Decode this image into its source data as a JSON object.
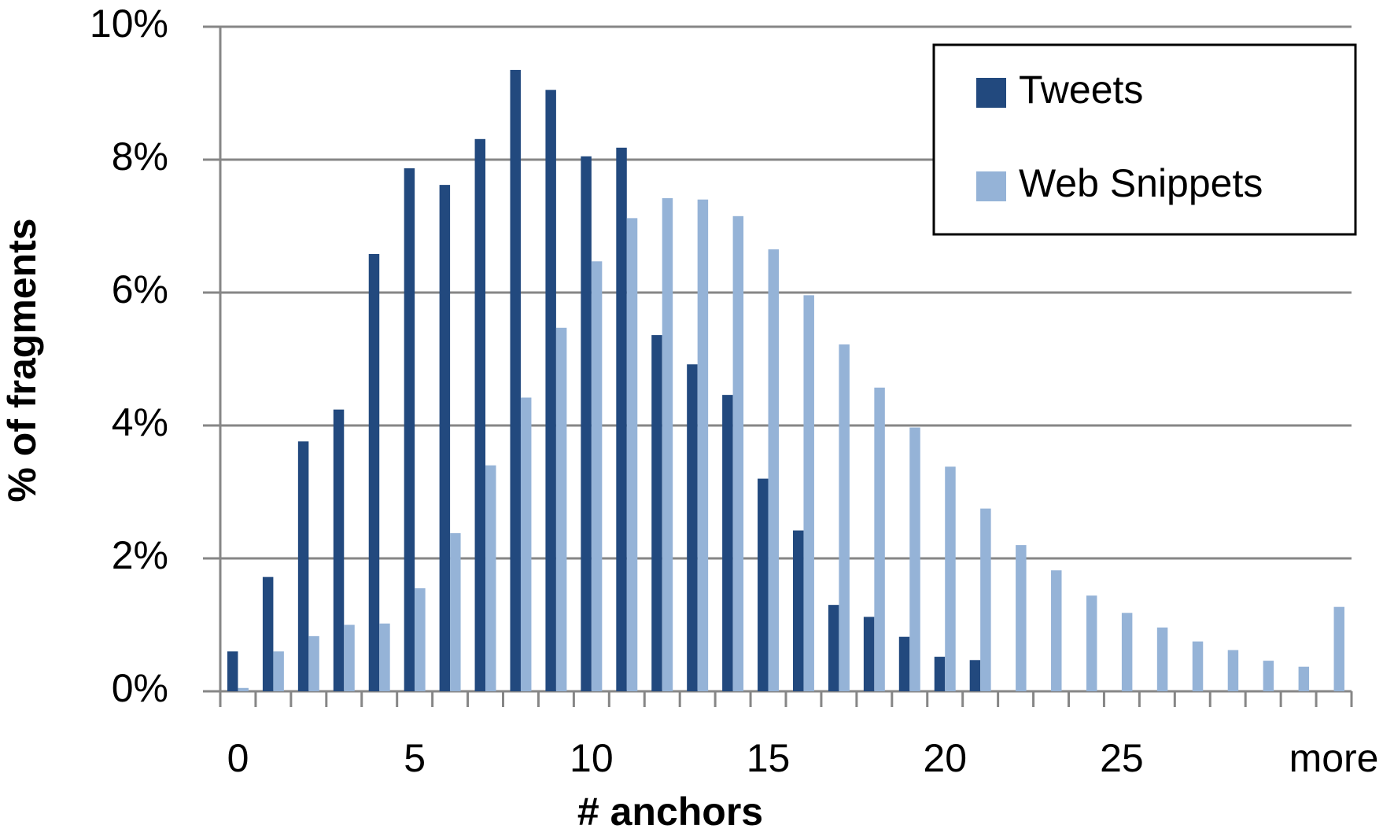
{
  "chart_data": {
    "type": "bar",
    "x_label": "# anchors",
    "y_label": "% of fragments",
    "categories": [
      "0",
      null,
      null,
      null,
      null,
      "5",
      null,
      null,
      null,
      null,
      "10",
      null,
      null,
      null,
      null,
      "15",
      null,
      null,
      null,
      null,
      "20",
      null,
      null,
      null,
      null,
      "25",
      null,
      null,
      null,
      null,
      null,
      "more"
    ],
    "series": [
      {
        "name": "Tweets",
        "color": "#22497e",
        "values": [
          0.6,
          1.72,
          3.76,
          4.24,
          6.58,
          7.87,
          7.62,
          8.31,
          9.35,
          9.05,
          8.05,
          8.18,
          5.36,
          4.92,
          4.46,
          3.2,
          2.42,
          1.3,
          1.12,
          0.82,
          0.52,
          0.47,
          0,
          0,
          0,
          0,
          0,
          0,
          0,
          0,
          0,
          0
        ]
      },
      {
        "name": "Web Snippets",
        "color": "#95b3d7",
        "values": [
          0.05,
          0.6,
          0.83,
          1.0,
          1.02,
          1.55,
          2.38,
          3.4,
          4.42,
          5.47,
          6.47,
          7.12,
          7.42,
          7.4,
          7.15,
          6.65,
          5.96,
          5.22,
          4.57,
          3.97,
          3.38,
          2.75,
          2.2,
          1.82,
          1.44,
          1.18,
          0.96,
          0.75,
          0.62,
          0.46,
          0.37,
          1.27
        ]
      }
    ],
    "ylim": [
      0,
      10
    ],
    "yticks": [
      {
        "value": 0,
        "label": "0%"
      },
      {
        "value": 2,
        "label": "2%"
      },
      {
        "value": 4,
        "label": "4%"
      },
      {
        "value": 6,
        "label": "6%"
      },
      {
        "value": 8,
        "label": "8%"
      },
      {
        "value": 10,
        "label": "10%"
      }
    ],
    "grid": true,
    "legend": "upper right"
  }
}
